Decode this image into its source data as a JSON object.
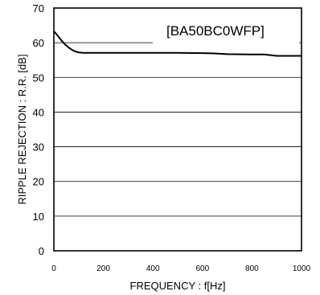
{
  "chart_data": {
    "type": "line",
    "xlabel": "FREQUENCY : f[Hz]",
    "ylabel": "RIPPLE REJECTION : R.R. [dB]",
    "annotation": "[BA50BC0WFP]",
    "xlim": [
      0,
      1000
    ],
    "ylim": [
      0,
      70
    ],
    "x_ticks": [
      0,
      200,
      400,
      600,
      800,
      1000
    ],
    "y_ticks": [
      0,
      10,
      20,
      30,
      40,
      50,
      60,
      70
    ],
    "grid": "horizontal",
    "series": [
      {
        "x": [
          0,
          10,
          20,
          30,
          40,
          50,
          60,
          70,
          80,
          90,
          100,
          120,
          150,
          200,
          300,
          400,
          500,
          600,
          650,
          700,
          800,
          850,
          900,
          950,
          1000
        ],
        "y": [
          63.3,
          62.5,
          61.6,
          60.7,
          59.9,
          59.2,
          58.6,
          58.1,
          57.7,
          57.4,
          57.2,
          57.1,
          57.1,
          57.1,
          57.1,
          57.1,
          57.1,
          57.0,
          56.9,
          56.7,
          56.6,
          56.6,
          56.2,
          56.2,
          56.2
        ]
      }
    ]
  }
}
